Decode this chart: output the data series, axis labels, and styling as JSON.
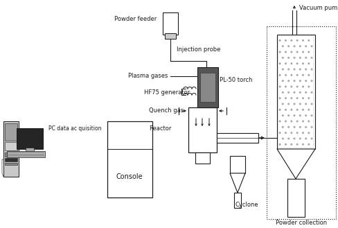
{
  "fig_width": 4.89,
  "fig_height": 3.29,
  "dpi": 100,
  "bg_color": "#ffffff",
  "labels": {
    "vacuum_pump": "Vacuum pump",
    "powder_feeder": "Powder feeder",
    "injection_probe": "Injection probe",
    "plasma_gases": "Plasma gases",
    "hf75_generator": "HF75 generator",
    "pl50_torch": "PL-50 torch",
    "quench_gas": "Quench gas",
    "reactor": "Reactor",
    "cyclone": "Cyclone",
    "powder_collection": "Powder collection",
    "pc_data": "PC data ac quisition",
    "console": "Console"
  },
  "colors": {
    "line": "#1a1a1a",
    "fill_light": "#e0e0e0",
    "fill_medium": "#b0b0b0",
    "fill_dark": "#404040",
    "bg": "#ffffff"
  }
}
